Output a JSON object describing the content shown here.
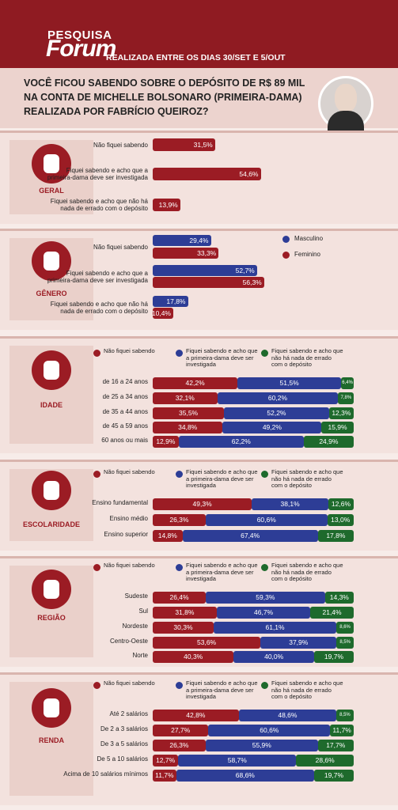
{
  "header": {
    "brand_top": "PESQUISA",
    "brand": "Forum",
    "subtitle": "REALIZADA ENTRE OS DIAS 30/SET E 5/OUT"
  },
  "question": "VOCÊ FICOU SABENDO SOBRE O DEPÓSITO DE R$ 89 MIL NA CONTA DE MICHELLE BOLSONARO (PRIMEIRA-DAMA) REALIZADA POR FABRÍCIO QUEIROZ?",
  "chart_data": [
    {
      "type": "bar",
      "section": "GERAL",
      "categories": [
        "Não fiquei sabendo",
        "Fiquei sabendo e acho que a primeira-dama deve ser investigada",
        "Fiquei sabendo e acho que não há nada de errado com o depósito"
      ],
      "values": [
        31.5,
        54.6,
        13.9
      ],
      "value_labels": [
        "31,5%",
        "54,6%",
        "13,9%"
      ],
      "color": "#9b1c24"
    },
    {
      "type": "grouped-bar",
      "section": "GÊNERO",
      "categories": [
        "Não fiquei sabendo",
        "Fiquei sabendo e acho que a primeira-dama deve ser investigada",
        "Fiquei sabendo e acho que não há nada de errado com o depósito"
      ],
      "series": [
        {
          "name": "Masculino",
          "color": "#2d3d96",
          "values": [
            29.4,
            52.7,
            17.8
          ],
          "value_labels": [
            "29,4%",
            "52,7%",
            "17,8%"
          ]
        },
        {
          "name": "Feminino",
          "color": "#9b1c24",
          "values": [
            33.3,
            56.3,
            10.4
          ],
          "value_labels": [
            "33,3%",
            "56,3%",
            "10,4%"
          ]
        }
      ]
    },
    {
      "type": "stacked-bar",
      "section": "IDADE",
      "categories": [
        "de 16 a 24 anos",
        "de 25 a 34 anos",
        "de 35 a 44 anos",
        "de 45 a 59 anos",
        "60 anos ou mais"
      ],
      "series": [
        {
          "name": "Não fiquei sabendo",
          "color": "#9b1c24",
          "values": [
            42.2,
            32.1,
            35.5,
            34.8,
            12.9
          ],
          "value_labels": [
            "42,2%",
            "32,1%",
            "35,5%",
            "34,8%",
            "12,9%"
          ]
        },
        {
          "name": "Fiquei sabendo e acho que a primeira-dama deve ser investigada",
          "color": "#2d3d96",
          "values": [
            51.5,
            60.2,
            52.2,
            49.2,
            62.2
          ],
          "value_labels": [
            "51,5%",
            "60,2%",
            "52,2%",
            "49,2%",
            "62,2%"
          ]
        },
        {
          "name": "Fiquei sabendo e acho que não há nada de errado com o depósito",
          "color": "#1e6a2c",
          "values": [
            6.4,
            7.8,
            12.3,
            15.9,
            24.9
          ],
          "value_labels": [
            "6,4%",
            "7,8%",
            "12,3%",
            "15,9%",
            "24,9%"
          ]
        }
      ]
    },
    {
      "type": "stacked-bar",
      "section": "ESCOLARIDADE",
      "categories": [
        "Ensino fundamental",
        "Ensino médio",
        "Ensino superior"
      ],
      "series": [
        {
          "name": "Não fiquei sabendo",
          "color": "#9b1c24",
          "values": [
            49.3,
            26.3,
            14.8
          ],
          "value_labels": [
            "49,3%",
            "26,3%",
            "14,8%"
          ]
        },
        {
          "name": "Fiquei sabendo e acho que a primeira-dama deve ser investigada",
          "color": "#2d3d96",
          "values": [
            38.1,
            60.6,
            67.4
          ],
          "value_labels": [
            "38,1%",
            "60,6%",
            "67,4%"
          ]
        },
        {
          "name": "Fiquei sabendo e acho que não há nada de errado com o depósito",
          "color": "#1e6a2c",
          "values": [
            12.6,
            13.0,
            17.8
          ],
          "value_labels": [
            "12,6%",
            "13,0%",
            "17,8%"
          ]
        }
      ]
    },
    {
      "type": "stacked-bar",
      "section": "REGIÃO",
      "categories": [
        "Sudeste",
        "Sul",
        "Nordeste",
        "Centro-Oeste",
        "Norte"
      ],
      "series": [
        {
          "name": "Não fiquei sabendo",
          "color": "#9b1c24",
          "values": [
            26.4,
            31.8,
            30.3,
            53.6,
            40.3
          ],
          "value_labels": [
            "26,4%",
            "31,8%",
            "30,3%",
            "53,6%",
            "40,3%"
          ]
        },
        {
          "name": "Fiquei sabendo e acho que a primeira-dama deve ser investigada",
          "color": "#2d3d96",
          "values": [
            59.3,
            46.7,
            61.1,
            37.9,
            40.0
          ],
          "value_labels": [
            "59,3%",
            "46,7%",
            "61,1%",
            "37,9%",
            "40,0%"
          ]
        },
        {
          "name": "Fiquei sabendo e acho que não há nada de errado com o depósito",
          "color": "#1e6a2c",
          "values": [
            14.3,
            21.4,
            8.6,
            8.5,
            19.7
          ],
          "value_labels": [
            "14,3%",
            "21,4%",
            "8,6%",
            "8,5%",
            "19,7%"
          ]
        }
      ]
    },
    {
      "type": "stacked-bar",
      "section": "RENDA",
      "categories": [
        "Até 2 salários",
        "De 2 a 3 salários",
        "De 3 a 5 salários",
        "De 5 a 10 salários",
        "Acima de 10 salários mínimos"
      ],
      "series": [
        {
          "name": "Não fiquei sabendo",
          "color": "#9b1c24",
          "values": [
            42.8,
            27.7,
            26.3,
            12.7,
            11.7
          ],
          "value_labels": [
            "42,8%",
            "27,7%",
            "26,3%",
            "12,7%",
            "11,7%"
          ]
        },
        {
          "name": "Fiquei sabendo e acho que a primeira-dama deve ser investigada",
          "color": "#2d3d96",
          "values": [
            48.6,
            60.6,
            55.9,
            58.7,
            68.6
          ],
          "value_labels": [
            "48,6%",
            "60,6%",
            "55,9%",
            "58,7%",
            "68,6%"
          ]
        },
        {
          "name": "Fiquei sabendo e acho que não há nada de errado com o depósito",
          "color": "#1e6a2c",
          "values": [
            8.5,
            11.7,
            17.7,
            28.6,
            19.7
          ],
          "value_labels": [
            "8,5%",
            "11,7%",
            "17,7%",
            "28,6%",
            "19,7%"
          ]
        }
      ]
    }
  ]
}
